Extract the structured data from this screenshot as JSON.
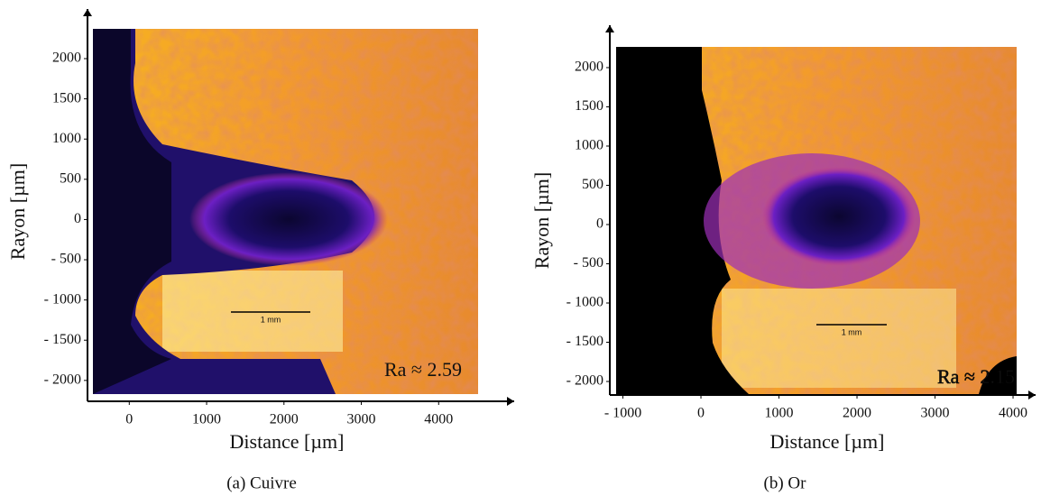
{
  "chart_data": [
    {
      "type": "image",
      "x_label": "Distance [µm]",
      "y_label": "Rayon [µm]",
      "xlim": [
        -470,
        4510
      ],
      "ylim": [
        -2170,
        2370
      ],
      "xticks": [
        0,
        1000,
        2000,
        3000,
        4000
      ],
      "yticks": [
        2000,
        1500,
        1000,
        500,
        0,
        {
          "value": -500,
          "label": "- 500"
        },
        {
          "value": -1000,
          "label": "- 1000"
        },
        {
          "value": -1500,
          "label": "- 1500"
        },
        {
          "value": -2000,
          "label": "- 2000"
        }
      ],
      "scale_bar": "1 mm",
      "annotation": "Ra ≈ 2.59",
      "caption": "(a) Cuivre"
    },
    {
      "type": "image",
      "x_label": "Distance [µm]",
      "y_label": "Rayon [µm]",
      "xlim": [
        -1087,
        4046
      ],
      "ylim": [
        -2161,
        2264
      ],
      "xticks": [
        {
          "value": -1000,
          "label": "- 1000"
        },
        0,
        1000,
        2000,
        3000,
        4000
      ],
      "yticks": [
        2000,
        1500,
        1000,
        500,
        0,
        {
          "value": -500,
          "label": "- 500"
        },
        {
          "value": -1000,
          "label": "- 1000"
        },
        {
          "value": -1500,
          "label": "- 1500"
        },
        {
          "value": -2000,
          "label": "- 2000"
        }
      ],
      "scale_bar": "1 mm",
      "annotation": "Ra ≈ 2.15",
      "caption": "(b) Or"
    }
  ]
}
